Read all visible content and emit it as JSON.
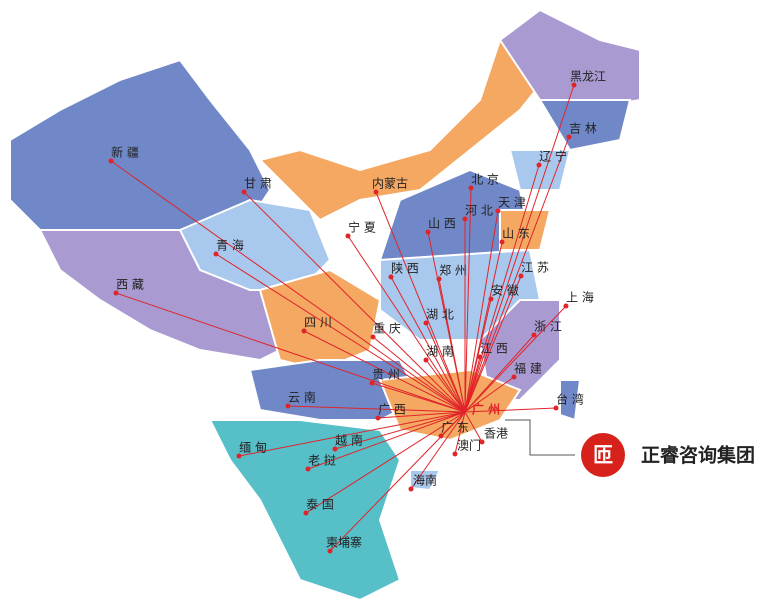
{
  "regions": [
    {
      "label": "新 疆"
    },
    {
      "label": "西 藏"
    },
    {
      "label": "青 海"
    },
    {
      "label": "甘 肃"
    },
    {
      "label": "内蒙古"
    },
    {
      "label": "宁 夏"
    },
    {
      "label": "黑龙江"
    },
    {
      "label": "吉 林"
    },
    {
      "label": "辽 宁"
    },
    {
      "label": "北 京"
    },
    {
      "label": "天 津"
    },
    {
      "label": "河 北"
    },
    {
      "label": "山 西"
    },
    {
      "label": "山 东"
    },
    {
      "label": "陕 西"
    },
    {
      "label": "郑 州"
    },
    {
      "label": "江 苏"
    },
    {
      "label": "安 徽"
    },
    {
      "label": "上 海"
    },
    {
      "label": "四 川"
    },
    {
      "label": "重 庆"
    },
    {
      "label": "湖 北"
    },
    {
      "label": "浙 江"
    },
    {
      "label": "湖 南"
    },
    {
      "label": "江 西"
    },
    {
      "label": "贵 州"
    },
    {
      "label": "福 建"
    },
    {
      "label": "云 南"
    },
    {
      "label": "广 西"
    },
    {
      "label": "广 州"
    },
    {
      "label": "广 东"
    },
    {
      "label": "香港"
    },
    {
      "label": "澳门"
    },
    {
      "label": "台 湾"
    },
    {
      "label": "越 南"
    },
    {
      "label": "缅 甸"
    },
    {
      "label": "老 挝"
    },
    {
      "label": "海南"
    },
    {
      "label": "泰 国"
    },
    {
      "label": "柬埔寨"
    }
  ],
  "brand": {
    "name": "正睿咨询集团",
    "logo": "匝"
  }
}
